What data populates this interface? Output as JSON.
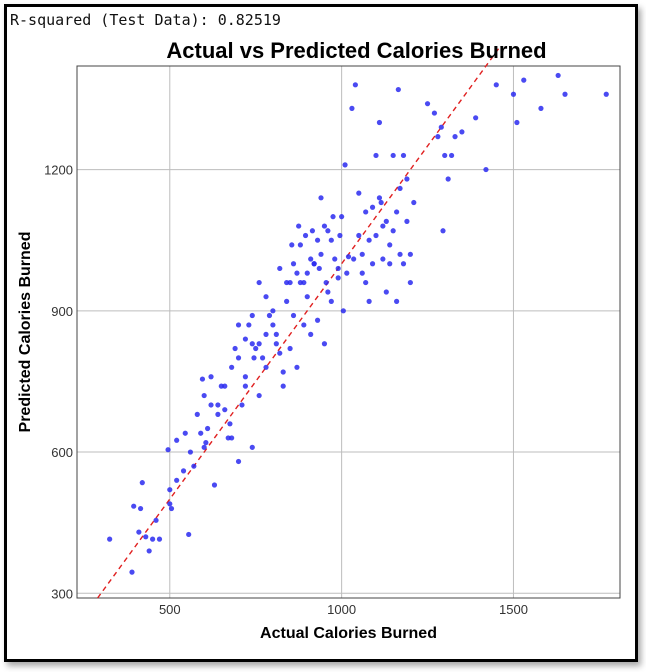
{
  "header": {
    "r_squared_text": "R-squared (Test Data): 0.82519"
  },
  "colors": {
    "points": "#2a2af0",
    "reference_line": "#e02020",
    "grid": "#bdbdbd",
    "plot_border": "#444444"
  },
  "chart_data": {
    "type": "scatter",
    "title": "Actual vs Predicted Calories Burned",
    "xlabel": "Actual Calories Burned",
    "ylabel": "Predicted Calories Burned",
    "xlim": [
      230,
      1810
    ],
    "ylim": [
      290,
      1420
    ],
    "xticks": [
      500,
      1000,
      1500
    ],
    "yticks": [
      300,
      600,
      900,
      1200
    ],
    "grid": true,
    "reference_line": {
      "style": "dashed",
      "from": [
        290,
        290
      ],
      "to": [
        1460,
        1460
      ]
    },
    "series": [
      {
        "points": [
          [
            325,
            415
          ],
          [
            390,
            345
          ],
          [
            395,
            485
          ],
          [
            410,
            430
          ],
          [
            415,
            480
          ],
          [
            420,
            535
          ],
          [
            430,
            420
          ],
          [
            440,
            390
          ],
          [
            450,
            415
          ],
          [
            460,
            455
          ],
          [
            470,
            415
          ],
          [
            495,
            605
          ],
          [
            500,
            490
          ],
          [
            505,
            480
          ],
          [
            520,
            625
          ],
          [
            545,
            640
          ],
          [
            555,
            425
          ],
          [
            570,
            570
          ],
          [
            590,
            640
          ],
          [
            595,
            755
          ],
          [
            600,
            610
          ],
          [
            605,
            620
          ],
          [
            610,
            650
          ],
          [
            620,
            760
          ],
          [
            630,
            530
          ],
          [
            640,
            700
          ],
          [
            650,
            740
          ],
          [
            660,
            690
          ],
          [
            670,
            630
          ],
          [
            675,
            660
          ],
          [
            680,
            630
          ],
          [
            690,
            820
          ],
          [
            700,
            580
          ],
          [
            710,
            700
          ],
          [
            720,
            740
          ],
          [
            730,
            870
          ],
          [
            740,
            610
          ],
          [
            745,
            800
          ],
          [
            750,
            820
          ],
          [
            760,
            830
          ],
          [
            770,
            800
          ],
          [
            780,
            780
          ],
          [
            800,
            870
          ],
          [
            810,
            850
          ],
          [
            820,
            810
          ],
          [
            830,
            770
          ],
          [
            840,
            920
          ],
          [
            850,
            960
          ],
          [
            860,
            890
          ],
          [
            870,
            980
          ],
          [
            880,
            960
          ],
          [
            890,
            960
          ],
          [
            900,
            930
          ],
          [
            910,
            1010
          ],
          [
            920,
            1000
          ],
          [
            930,
            1050
          ],
          [
            940,
            1140
          ],
          [
            950,
            1080
          ],
          [
            960,
            940
          ],
          [
            970,
            1050
          ],
          [
            980,
            1010
          ],
          [
            990,
            990
          ],
          [
            1000,
            1100
          ],
          [
            1005,
            900
          ],
          [
            1010,
            1210
          ],
          [
            1020,
            1015
          ],
          [
            1030,
            1330
          ],
          [
            1040,
            1380
          ],
          [
            1050,
            1060
          ],
          [
            1060,
            1020
          ],
          [
            1070,
            960
          ],
          [
            1080,
            920
          ],
          [
            1090,
            1000
          ],
          [
            1100,
            1230
          ],
          [
            1110,
            1300
          ],
          [
            1115,
            1130
          ],
          [
            1120,
            1010
          ],
          [
            1130,
            940
          ],
          [
            1140,
            1000
          ],
          [
            1150,
            1230
          ],
          [
            1160,
            1110
          ],
          [
            1165,
            1370
          ],
          [
            1170,
            1020
          ],
          [
            1180,
            1230
          ],
          [
            1190,
            1090
          ],
          [
            1200,
            960
          ],
          [
            1210,
            1130
          ],
          [
            1250,
            1340
          ],
          [
            1270,
            1320
          ],
          [
            1280,
            1270
          ],
          [
            1290,
            1290
          ],
          [
            1295,
            1070
          ],
          [
            1300,
            1230
          ],
          [
            1310,
            1180
          ],
          [
            1320,
            1230
          ],
          [
            1330,
            1270
          ],
          [
            1350,
            1280
          ],
          [
            1390,
            1310
          ],
          [
            1420,
            1200
          ],
          [
            1450,
            1380
          ],
          [
            1500,
            1360
          ],
          [
            1510,
            1300
          ],
          [
            1530,
            1390
          ],
          [
            1580,
            1330
          ],
          [
            1630,
            1400
          ],
          [
            1650,
            1360
          ],
          [
            1770,
            1360
          ],
          [
            700,
            800
          ],
          [
            720,
            760
          ],
          [
            740,
            830
          ],
          [
            760,
            720
          ],
          [
            780,
            850
          ],
          [
            790,
            890
          ],
          [
            810,
            830
          ],
          [
            830,
            740
          ],
          [
            850,
            820
          ],
          [
            870,
            780
          ],
          [
            890,
            870
          ],
          [
            910,
            850
          ],
          [
            930,
            880
          ],
          [
            950,
            830
          ],
          [
            970,
            920
          ],
          [
            990,
            970
          ],
          [
            900,
            980
          ],
          [
            920,
            1000
          ],
          [
            940,
            1020
          ],
          [
            960,
            1070
          ],
          [
            880,
            1040
          ],
          [
            860,
            1000
          ],
          [
            840,
            960
          ],
          [
            820,
            990
          ],
          [
            800,
            900
          ],
          [
            780,
            930
          ],
          [
            760,
            960
          ],
          [
            740,
            890
          ],
          [
            720,
            840
          ],
          [
            700,
            870
          ],
          [
            680,
            780
          ],
          [
            660,
            740
          ],
          [
            640,
            680
          ],
          [
            620,
            700
          ],
          [
            600,
            720
          ],
          [
            580,
            680
          ],
          [
            560,
            600
          ],
          [
            540,
            560
          ],
          [
            520,
            540
          ],
          [
            500,
            520
          ],
          [
            1060,
            980
          ],
          [
            1080,
            1050
          ],
          [
            1100,
            1060
          ],
          [
            1120,
            1080
          ],
          [
            1140,
            1040
          ],
          [
            1160,
            920
          ],
          [
            1180,
            1000
          ],
          [
            1200,
            1020
          ],
          [
            1050,
            1150
          ],
          [
            1070,
            1110
          ],
          [
            1090,
            1120
          ],
          [
            1110,
            1140
          ],
          [
            1130,
            1090
          ],
          [
            1150,
            1070
          ],
          [
            1170,
            1160
          ],
          [
            1190,
            1180
          ],
          [
            975,
            1100
          ],
          [
            995,
            1060
          ],
          [
            1015,
            980
          ],
          [
            1035,
            1010
          ],
          [
            955,
            960
          ],
          [
            935,
            990
          ],
          [
            915,
            1070
          ],
          [
            895,
            1060
          ],
          [
            875,
            1080
          ],
          [
            855,
            1040
          ]
        ]
      }
    ]
  }
}
